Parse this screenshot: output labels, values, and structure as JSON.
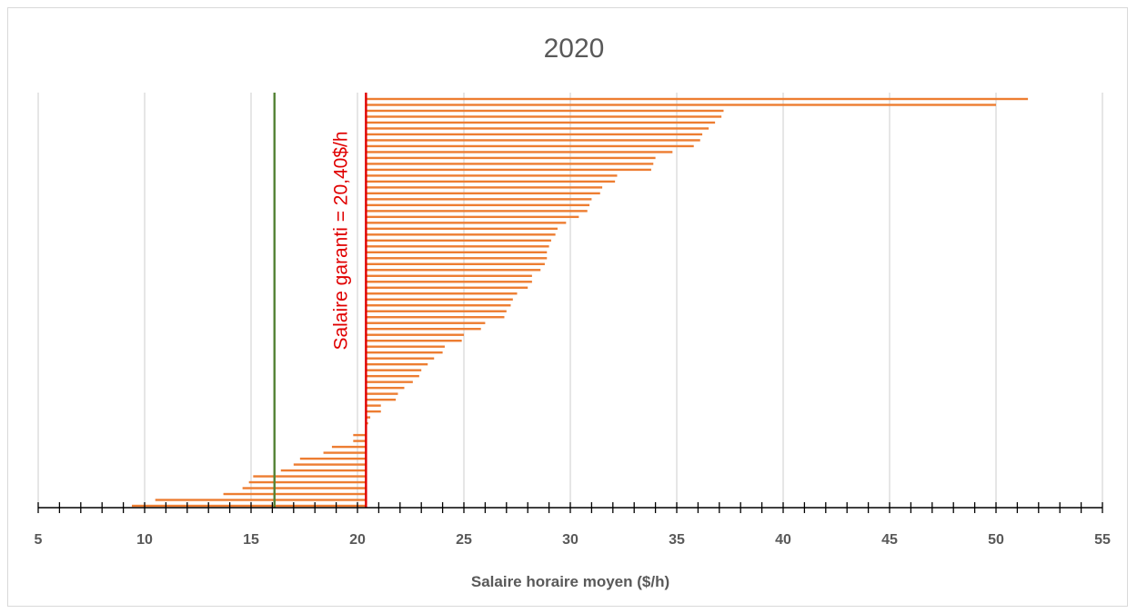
{
  "chart_data": {
    "type": "bar",
    "orientation": "horizontal",
    "title": "2020",
    "xlabel": "Salaire horaire moyen ($/h)",
    "ylabel": "",
    "xlim": [
      5,
      55
    ],
    "xticks": [
      "5",
      "10",
      "15",
      "20",
      "25",
      "30",
      "35",
      "40",
      "45",
      "50",
      "55"
    ],
    "minor_tick_step": 1,
    "grid": true,
    "legend": "none",
    "bar_base": 20.4,
    "reference_lines": [
      {
        "value": 20.4,
        "label": "Salaire garanti = 20,40$/h",
        "color": "#e00000"
      },
      {
        "value": 16.1,
        "label": "",
        "color": "#548235"
      }
    ],
    "bar_color": "#ed7d31",
    "grid_color": "#d9d9d9",
    "values": [
      51.5,
      50.0,
      37.2,
      37.1,
      36.8,
      36.5,
      36.2,
      36.1,
      35.8,
      34.8,
      34.0,
      33.9,
      33.8,
      32.2,
      32.1,
      31.5,
      31.4,
      31.0,
      30.9,
      30.8,
      30.4,
      29.8,
      29.4,
      29.3,
      29.1,
      29.0,
      28.9,
      28.9,
      28.8,
      28.6,
      28.2,
      28.2,
      28.0,
      27.5,
      27.3,
      27.2,
      27.0,
      26.9,
      26.0,
      25.8,
      25.0,
      24.9,
      24.1,
      24.0,
      23.6,
      23.3,
      23.0,
      22.9,
      22.6,
      22.2,
      21.9,
      21.8,
      21.1,
      21.1,
      20.6,
      20.5,
      20.4,
      19.8,
      19.8,
      18.8,
      18.4,
      17.3,
      17.0,
      16.4,
      15.1,
      14.9,
      14.6,
      13.7,
      10.5,
      9.4
    ]
  }
}
